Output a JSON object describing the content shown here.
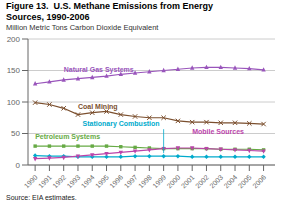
{
  "chart_data": {
    "type": "line",
    "title": "Figure 13.  U.S. Methane Emissions from Energy",
    "subtitle": "Sources, 1990-2006",
    "ylabel": "Million Metric Tons Carbon Dioxide Equivalent",
    "annotations": [
      "Source: EIA estimates."
    ],
    "x": [
      1990,
      1991,
      1992,
      1993,
      1994,
      1995,
      1996,
      1997,
      1998,
      1999,
      2000,
      2001,
      2002,
      2003,
      2004,
      2005,
      2006
    ],
    "series": [
      {
        "name": "Natural Gas Systems",
        "color": "#9955BB",
        "marker": "triangle-up",
        "values": [
          129,
          132,
          135,
          137,
          139,
          141,
          144,
          146,
          148,
          150,
          152,
          154,
          155,
          155,
          154,
          153,
          151
        ]
      },
      {
        "name": "Coal Mining",
        "color": "#7B4F2E",
        "marker": "x",
        "values": [
          99,
          96,
          90,
          80,
          83,
          85,
          80,
          77,
          75,
          75,
          70,
          68,
          68,
          67,
          67,
          66,
          65
        ]
      },
      {
        "name": "Stationary Combustion",
        "color": "#00AACC",
        "marker": "diamond",
        "values": [
          15,
          14,
          14,
          13,
          13,
          13,
          13,
          14,
          14,
          14,
          14,
          13,
          13,
          13,
          13,
          13,
          13
        ]
      },
      {
        "name": "Petroleum Systems",
        "color": "#66AA44",
        "marker": "square",
        "values": [
          30,
          30,
          30,
          30,
          30,
          30,
          29,
          28,
          27,
          26,
          26,
          26,
          26,
          25,
          25,
          25,
          24
        ]
      },
      {
        "name": "Mobile Sources",
        "color": "#BB44AA",
        "marker": "triangle-down",
        "values": [
          10,
          11,
          12,
          14,
          16,
          18,
          20,
          22,
          24,
          26,
          27,
          27,
          26,
          25,
          24,
          23,
          22
        ]
      }
    ],
    "xlim": [
      1989.5,
      2006.8
    ],
    "xticks": [
      1990,
      1991,
      1992,
      1993,
      1994,
      1995,
      1996,
      1997,
      1998,
      1999,
      2000,
      2001,
      2002,
      2003,
      2004,
      2005,
      2006
    ],
    "ylim": [
      0,
      200
    ],
    "yticks": [
      0,
      50,
      100,
      150,
      200
    ],
    "grid": true
  }
}
